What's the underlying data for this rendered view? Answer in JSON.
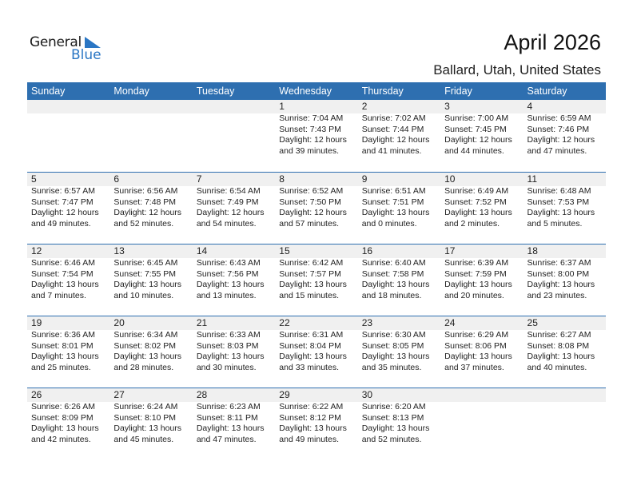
{
  "logo": {
    "line1": "General",
    "line2": "Blue",
    "color": "#2a76c4"
  },
  "header": {
    "title": "April 2026",
    "location": "Ballard, Utah, United States"
  },
  "colors": {
    "header_bg": "#2e6fb0",
    "strip_bg": "#f0f0f0"
  },
  "weekdays": [
    "Sunday",
    "Monday",
    "Tuesday",
    "Wednesday",
    "Thursday",
    "Friday",
    "Saturday"
  ],
  "weeks": [
    [
      null,
      null,
      null,
      {
        "day": "1",
        "sunrise": "Sunrise: 7:04 AM",
        "sunset": "Sunset: 7:43 PM",
        "daylight1": "Daylight: 12 hours",
        "daylight2": "and 39 minutes."
      },
      {
        "day": "2",
        "sunrise": "Sunrise: 7:02 AM",
        "sunset": "Sunset: 7:44 PM",
        "daylight1": "Daylight: 12 hours",
        "daylight2": "and 41 minutes."
      },
      {
        "day": "3",
        "sunrise": "Sunrise: 7:00 AM",
        "sunset": "Sunset: 7:45 PM",
        "daylight1": "Daylight: 12 hours",
        "daylight2": "and 44 minutes."
      },
      {
        "day": "4",
        "sunrise": "Sunrise: 6:59 AM",
        "sunset": "Sunset: 7:46 PM",
        "daylight1": "Daylight: 12 hours",
        "daylight2": "and 47 minutes."
      }
    ],
    [
      {
        "day": "5",
        "sunrise": "Sunrise: 6:57 AM",
        "sunset": "Sunset: 7:47 PM",
        "daylight1": "Daylight: 12 hours",
        "daylight2": "and 49 minutes."
      },
      {
        "day": "6",
        "sunrise": "Sunrise: 6:56 AM",
        "sunset": "Sunset: 7:48 PM",
        "daylight1": "Daylight: 12 hours",
        "daylight2": "and 52 minutes."
      },
      {
        "day": "7",
        "sunrise": "Sunrise: 6:54 AM",
        "sunset": "Sunset: 7:49 PM",
        "daylight1": "Daylight: 12 hours",
        "daylight2": "and 54 minutes."
      },
      {
        "day": "8",
        "sunrise": "Sunrise: 6:52 AM",
        "sunset": "Sunset: 7:50 PM",
        "daylight1": "Daylight: 12 hours",
        "daylight2": "and 57 minutes."
      },
      {
        "day": "9",
        "sunrise": "Sunrise: 6:51 AM",
        "sunset": "Sunset: 7:51 PM",
        "daylight1": "Daylight: 13 hours",
        "daylight2": "and 0 minutes."
      },
      {
        "day": "10",
        "sunrise": "Sunrise: 6:49 AM",
        "sunset": "Sunset: 7:52 PM",
        "daylight1": "Daylight: 13 hours",
        "daylight2": "and 2 minutes."
      },
      {
        "day": "11",
        "sunrise": "Sunrise: 6:48 AM",
        "sunset": "Sunset: 7:53 PM",
        "daylight1": "Daylight: 13 hours",
        "daylight2": "and 5 minutes."
      }
    ],
    [
      {
        "day": "12",
        "sunrise": "Sunrise: 6:46 AM",
        "sunset": "Sunset: 7:54 PM",
        "daylight1": "Daylight: 13 hours",
        "daylight2": "and 7 minutes."
      },
      {
        "day": "13",
        "sunrise": "Sunrise: 6:45 AM",
        "sunset": "Sunset: 7:55 PM",
        "daylight1": "Daylight: 13 hours",
        "daylight2": "and 10 minutes."
      },
      {
        "day": "14",
        "sunrise": "Sunrise: 6:43 AM",
        "sunset": "Sunset: 7:56 PM",
        "daylight1": "Daylight: 13 hours",
        "daylight2": "and 13 minutes."
      },
      {
        "day": "15",
        "sunrise": "Sunrise: 6:42 AM",
        "sunset": "Sunset: 7:57 PM",
        "daylight1": "Daylight: 13 hours",
        "daylight2": "and 15 minutes."
      },
      {
        "day": "16",
        "sunrise": "Sunrise: 6:40 AM",
        "sunset": "Sunset: 7:58 PM",
        "daylight1": "Daylight: 13 hours",
        "daylight2": "and 18 minutes."
      },
      {
        "day": "17",
        "sunrise": "Sunrise: 6:39 AM",
        "sunset": "Sunset: 7:59 PM",
        "daylight1": "Daylight: 13 hours",
        "daylight2": "and 20 minutes."
      },
      {
        "day": "18",
        "sunrise": "Sunrise: 6:37 AM",
        "sunset": "Sunset: 8:00 PM",
        "daylight1": "Daylight: 13 hours",
        "daylight2": "and 23 minutes."
      }
    ],
    [
      {
        "day": "19",
        "sunrise": "Sunrise: 6:36 AM",
        "sunset": "Sunset: 8:01 PM",
        "daylight1": "Daylight: 13 hours",
        "daylight2": "and 25 minutes."
      },
      {
        "day": "20",
        "sunrise": "Sunrise: 6:34 AM",
        "sunset": "Sunset: 8:02 PM",
        "daylight1": "Daylight: 13 hours",
        "daylight2": "and 28 minutes."
      },
      {
        "day": "21",
        "sunrise": "Sunrise: 6:33 AM",
        "sunset": "Sunset: 8:03 PM",
        "daylight1": "Daylight: 13 hours",
        "daylight2": "and 30 minutes."
      },
      {
        "day": "22",
        "sunrise": "Sunrise: 6:31 AM",
        "sunset": "Sunset: 8:04 PM",
        "daylight1": "Daylight: 13 hours",
        "daylight2": "and 33 minutes."
      },
      {
        "day": "23",
        "sunrise": "Sunrise: 6:30 AM",
        "sunset": "Sunset: 8:05 PM",
        "daylight1": "Daylight: 13 hours",
        "daylight2": "and 35 minutes."
      },
      {
        "day": "24",
        "sunrise": "Sunrise: 6:29 AM",
        "sunset": "Sunset: 8:06 PM",
        "daylight1": "Daylight: 13 hours",
        "daylight2": "and 37 minutes."
      },
      {
        "day": "25",
        "sunrise": "Sunrise: 6:27 AM",
        "sunset": "Sunset: 8:08 PM",
        "daylight1": "Daylight: 13 hours",
        "daylight2": "and 40 minutes."
      }
    ],
    [
      {
        "day": "26",
        "sunrise": "Sunrise: 6:26 AM",
        "sunset": "Sunset: 8:09 PM",
        "daylight1": "Daylight: 13 hours",
        "daylight2": "and 42 minutes."
      },
      {
        "day": "27",
        "sunrise": "Sunrise: 6:24 AM",
        "sunset": "Sunset: 8:10 PM",
        "daylight1": "Daylight: 13 hours",
        "daylight2": "and 45 minutes."
      },
      {
        "day": "28",
        "sunrise": "Sunrise: 6:23 AM",
        "sunset": "Sunset: 8:11 PM",
        "daylight1": "Daylight: 13 hours",
        "daylight2": "and 47 minutes."
      },
      {
        "day": "29",
        "sunrise": "Sunrise: 6:22 AM",
        "sunset": "Sunset: 8:12 PM",
        "daylight1": "Daylight: 13 hours",
        "daylight2": "and 49 minutes."
      },
      {
        "day": "30",
        "sunrise": "Sunrise: 6:20 AM",
        "sunset": "Sunset: 8:13 PM",
        "daylight1": "Daylight: 13 hours",
        "daylight2": "and 52 minutes."
      },
      null,
      null
    ]
  ]
}
